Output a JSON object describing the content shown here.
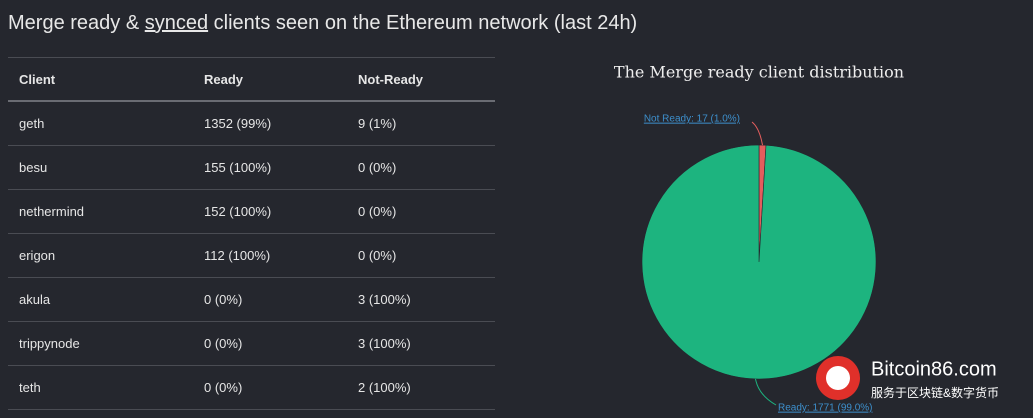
{
  "heading": {
    "before": "Merge ready & ",
    "link": "synced",
    "after": " clients seen on the Ethereum network (last 24h)"
  },
  "table": {
    "header": [
      "Client",
      "Ready",
      "Not-Ready"
    ],
    "rows": [
      [
        "geth",
        "1352 (99%)",
        "9 (1%)"
      ],
      [
        "besu",
        "155 (100%)",
        "0 (0%)"
      ],
      [
        "nethermind",
        "152 (100%)",
        "0 (0%)"
      ],
      [
        "erigon",
        "112 (100%)",
        "0 (0%)"
      ],
      [
        "akula",
        "0 (0%)",
        "3 (100%)"
      ],
      [
        "trippynode",
        "0 (0%)",
        "3 (100%)"
      ],
      [
        "teth",
        "0 (0%)",
        "2 (100%)"
      ]
    ]
  },
  "chart_data": {
    "type": "pie",
    "title": "The Merge ready client distribution",
    "categories": [
      "Not Ready",
      "Ready"
    ],
    "values": [
      17,
      1771
    ],
    "value_labels": [
      "Not Ready: 17 (1.0%)",
      "Ready: 1771 (99.0%)"
    ],
    "colors": [
      "#e35d5d",
      "#1db47f"
    ]
  },
  "watermark": {
    "site": "Bitcoin86.com",
    "tagline": "服务于区块链&数字货币"
  }
}
